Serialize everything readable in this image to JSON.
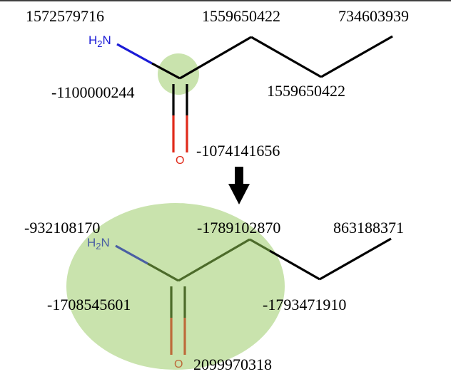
{
  "colors": {
    "highlight": "#c9e3ad",
    "bond_black": "#000000",
    "nitrogen": "#1b1bd6",
    "oxygen": "#e02a1a",
    "faded_bond": "#4c6b2a",
    "faded_nitrogen": "#4a5fa3",
    "faded_oxygen": "#bd6a3a"
  },
  "top_molecule": {
    "amine_label": "H2N",
    "oxygen_label": "O",
    "hashes": {
      "nitrogen": "1572579716",
      "carbonyl_carbon": "-1100000244",
      "oxygen": "-1074141656",
      "alpha_carbon": "1559650422",
      "beta_carbon": "1559650422",
      "methyl_carbon": "734603939"
    }
  },
  "bottom_molecule": {
    "amine_label": "H2N",
    "oxygen_label": "O",
    "hashes": {
      "nitrogen": "-932108170",
      "carbonyl_carbon": "-1708545601",
      "oxygen": "2099970318",
      "alpha_carbon": "-1789102870",
      "beta_carbon": "-1793471910",
      "methyl_carbon": "863188371"
    }
  },
  "arrow_icon": "down-arrow-icon"
}
